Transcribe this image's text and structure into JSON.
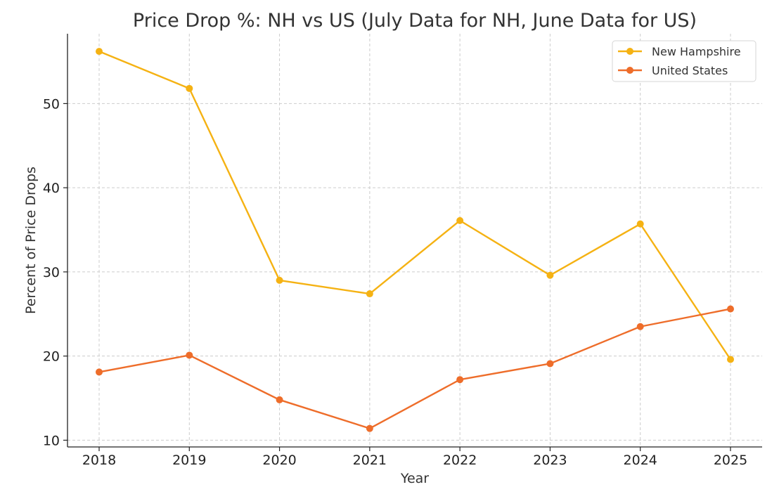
{
  "chart_data": {
    "type": "line",
    "title": "Price Drop %: NH vs US (July Data for NH, June Data for US)",
    "xlabel": "Year",
    "ylabel": "Percent of Price Drops",
    "x": [
      "2018",
      "2019",
      "2020",
      "2021",
      "2022",
      "2023",
      "2024",
      "2025"
    ],
    "yticks": [
      10,
      20,
      30,
      40,
      50
    ],
    "ylim": [
      9.2,
      58.3
    ],
    "grid": true,
    "legend_position": "top-right",
    "series": [
      {
        "name": "New Hampshire",
        "color": "#f5b213",
        "values": [
          56.2,
          51.8,
          29.0,
          27.4,
          36.1,
          29.6,
          35.7,
          19.6
        ]
      },
      {
        "name": "United States",
        "color": "#ee6d2a",
        "values": [
          18.1,
          20.1,
          14.8,
          11.4,
          17.2,
          19.1,
          23.5,
          25.6
        ]
      }
    ]
  }
}
